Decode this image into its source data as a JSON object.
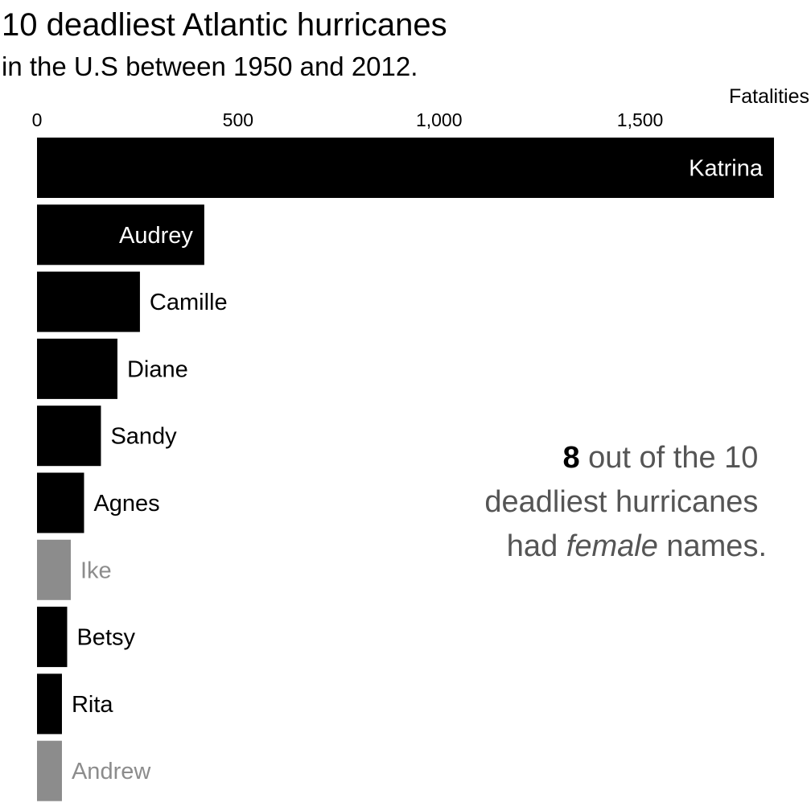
{
  "colors": {
    "female": "#000000",
    "male": "#8c8c8c",
    "label_inside": "#ffffff",
    "annotation": "#555555",
    "annotation_emphasis": "#000000"
  },
  "chart_data": {
    "type": "bar",
    "orientation": "horizontal",
    "title": "10 deadliest Atlantic hurricanes",
    "subtitle": "in the U.S between 1950 and 2012.",
    "xlabel": "Fatalities",
    "ylabel": "",
    "xlim": [
      0,
      1833
    ],
    "xticks": [
      0,
      500,
      1000,
      1500
    ],
    "xtick_labels": [
      "0",
      "500",
      "1,000",
      "1,500"
    ],
    "x_axis_position": "top",
    "grid": false,
    "categories": [
      "Katrina",
      "Audrey",
      "Camille",
      "Diane",
      "Sandy",
      "Agnes",
      "Ike",
      "Betsy",
      "Rita",
      "Andrew"
    ],
    "values": [
      1833,
      416,
      256,
      200,
      159,
      117,
      84,
      75,
      62,
      62
    ],
    "gender": [
      "female",
      "female",
      "female",
      "female",
      "female",
      "female",
      "male",
      "female",
      "female",
      "male"
    ],
    "label_position": [
      "inside",
      "inside",
      "outside",
      "outside",
      "outside",
      "outside",
      "outside",
      "outside",
      "outside",
      "outside"
    ],
    "annotation": {
      "line1_bold": "8",
      "line1_rest": " out of the 10",
      "line2": "deadliest hurricanes",
      "line3_pre": "had ",
      "line3_italic": "female",
      "line3_post": " names."
    }
  }
}
